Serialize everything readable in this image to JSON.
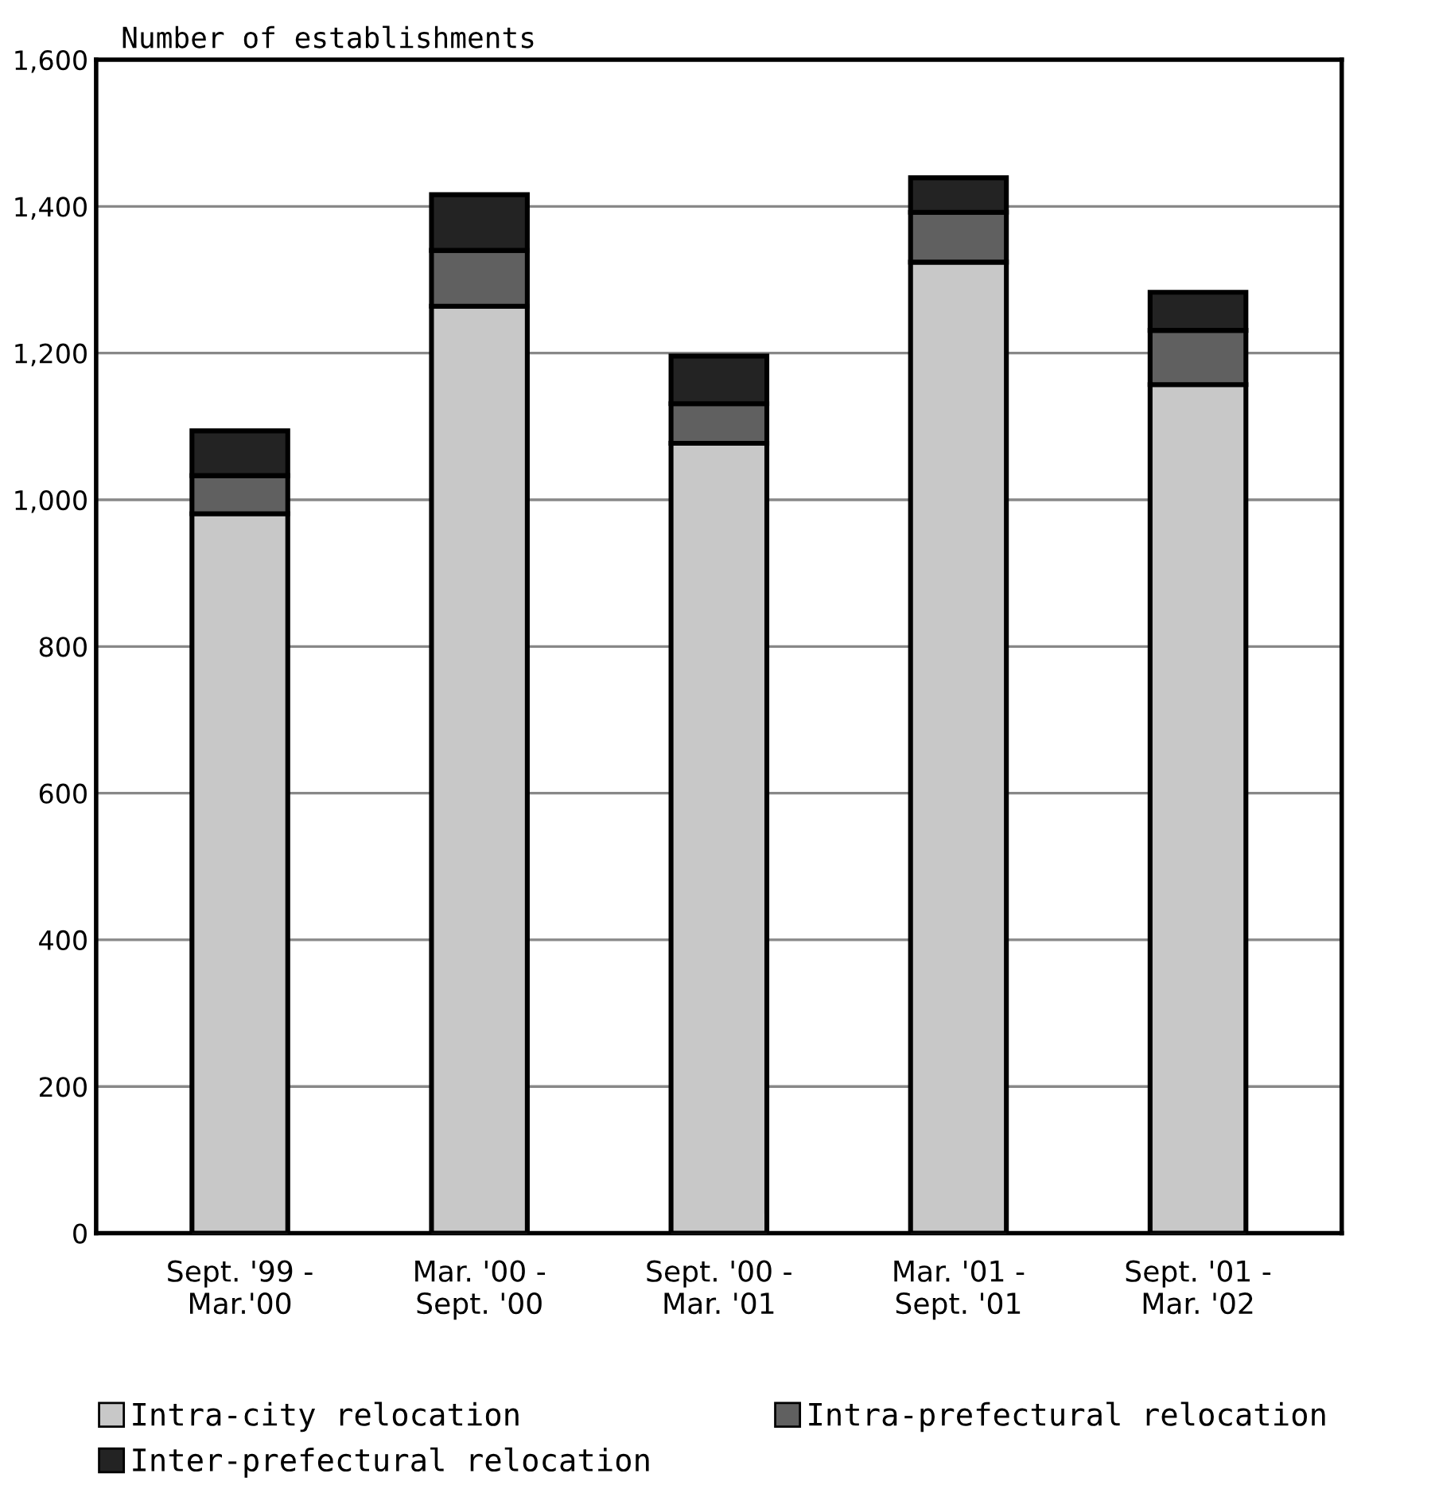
{
  "chart_data": {
    "type": "bar",
    "stacked": true,
    "ylabel": "Number of establishments",
    "categories": [
      "Sept. '99 -\nMar.'00",
      "Mar. '00 -\nSept. '00",
      "Sept. '00 -\nMar. '01",
      "Mar. '01 -\nSept. '01",
      "Sept. '01 -\nMar. '02"
    ],
    "series": [
      {
        "name": "Intra-city relocation",
        "color": "#c8c8c8",
        "values": [
          981,
          1264,
          1077,
          1324,
          1157
        ]
      },
      {
        "name": "Intra-prefectural relocation",
        "color": "#606060",
        "values": [
          52,
          76,
          54,
          68,
          74
        ]
      },
      {
        "name": "Inter-prefectural relocation",
        "color": "#232323",
        "values": [
          61,
          76,
          65,
          47,
          52
        ]
      }
    ],
    "ylim": [
      0,
      1600
    ],
    "yticks": [
      0,
      200,
      400,
      600,
      800,
      {
        "value": 1000,
        "label": "1,000"
      },
      {
        "value": 1200,
        "label": "1,200"
      },
      {
        "value": 1400,
        "label": "1,400"
      },
      {
        "value": 1600,
        "label": "1,600"
      }
    ],
    "grid": "y",
    "legend": "bottom"
  }
}
